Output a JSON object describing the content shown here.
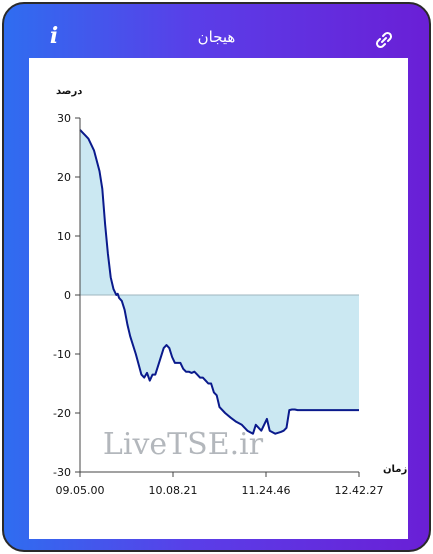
{
  "header": {
    "title": "هیجان",
    "info_icon": "info-icon",
    "link_icon": "link-icon"
  },
  "colors": {
    "gradient_start": "#2f6df0",
    "gradient_end": "#6a1fd6",
    "line": "#0a1a8c",
    "fill": "#cbe8f2"
  },
  "chart_data": {
    "type": "area",
    "ylabel": "درصد",
    "xlabel": "زمان",
    "xticks": [
      "09.05.00",
      "10.08.21",
      "11.24.46",
      "12.42.27"
    ],
    "ylim": [
      -30,
      30
    ],
    "yticks": [
      30,
      20,
      10,
      0,
      -10,
      -20,
      -30
    ],
    "watermark": "LiveTSE.ir",
    "series": [
      {
        "x": [
          0,
          1,
          2,
          3,
          5,
          7,
          8,
          9,
          10,
          11,
          12,
          13,
          13.5,
          14,
          15,
          16,
          17,
          18,
          20,
          22,
          23,
          24,
          25,
          26,
          27,
          28,
          30,
          31,
          32,
          33,
          34,
          35,
          36,
          37,
          38,
          39,
          40,
          41,
          42,
          43,
          44,
          45,
          46,
          47,
          48,
          49,
          50,
          52,
          54,
          56,
          58,
          60,
          62,
          63,
          64,
          65,
          66,
          67,
          68,
          70,
          72,
          73,
          74,
          75,
          76,
          77,
          78,
          79,
          80,
          81,
          82,
          83,
          84,
          85,
          86,
          87,
          88,
          89,
          90,
          91,
          92,
          93,
          94,
          95,
          96,
          97,
          98,
          99,
          100
        ],
        "y": [
          28,
          27.5,
          27,
          26.5,
          24.5,
          21,
          18,
          12,
          7,
          3,
          1,
          0,
          0.2,
          -0.5,
          -1,
          -2.5,
          -5,
          -7,
          -10,
          -13.5,
          -14,
          -13.2,
          -14.5,
          -13.5,
          -13.5,
          -12,
          -9,
          -8.5,
          -9,
          -10.5,
          -11.5,
          -11.5,
          -11.5,
          -12.5,
          -13,
          -13,
          -13.2,
          -13,
          -13.5,
          -14,
          -14,
          -14.5,
          -15,
          -15,
          -16.5,
          -17,
          -19,
          -20,
          -20.8,
          -21.5,
          -22,
          -23,
          -23.5,
          -22,
          -22.5,
          -23,
          -22,
          -21,
          -23,
          -23.5,
          -23.2,
          -23,
          -22.5,
          -19.5,
          -19.4,
          -19.4,
          -19.5,
          -19.5,
          -19.5,
          -19.5,
          -19.5,
          -19.5,
          -19.5,
          -19.5,
          -19.5,
          -19.5,
          -19.5,
          -19.5,
          -19.5,
          -19.5,
          -19.5,
          -19.5,
          -19.5,
          -19.5,
          -19.5,
          -19.5,
          -19.5,
          -19.5,
          -19.5
        ]
      }
    ]
  }
}
